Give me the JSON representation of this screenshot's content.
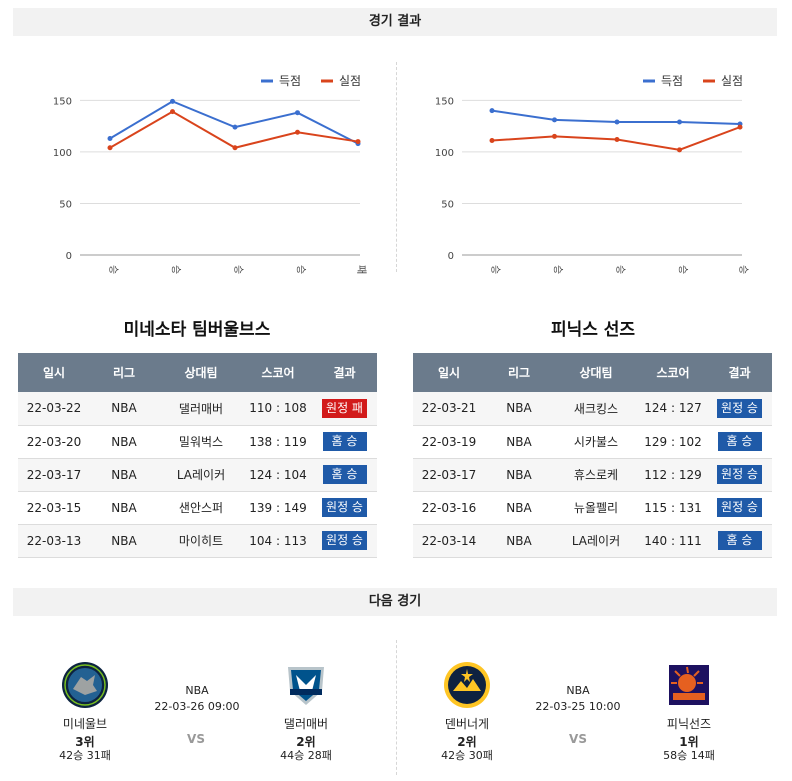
{
  "headers": {
    "results": "경기 결과",
    "next": "다음 경기"
  },
  "colors": {
    "scored": "#3b6fcf",
    "allowed": "#d9441c",
    "win_badge": "#1f5aa8",
    "loss_badge": "#d21a1a",
    "table_header": "#6b7b8c"
  },
  "chart_data": [
    {
      "type": "line",
      "legend": [
        "득점",
        "실점"
      ],
      "legend_position": "top-right",
      "categories": [
        "승",
        "승",
        "승",
        "승",
        "패"
      ],
      "series": [
        {
          "name": "득점",
          "values": [
            113,
            149,
            124,
            138,
            108
          ]
        },
        {
          "name": "실점",
          "values": [
            104,
            139,
            104,
            119,
            110
          ]
        }
      ],
      "yticks": [
        0,
        50,
        100,
        150
      ],
      "ylim": [
        0,
        160
      ],
      "grid": true
    },
    {
      "type": "line",
      "legend": [
        "득점",
        "실점"
      ],
      "legend_position": "top-right",
      "categories": [
        "승",
        "승",
        "승",
        "승",
        "승"
      ],
      "series": [
        {
          "name": "득점",
          "values": [
            140,
            131,
            129,
            129,
            127
          ]
        },
        {
          "name": "실점",
          "values": [
            111,
            115,
            112,
            102,
            124
          ]
        }
      ],
      "yticks": [
        0,
        50,
        100,
        150
      ],
      "ylim": [
        0,
        160
      ],
      "grid": true
    }
  ],
  "teams": [
    {
      "name": "미네소타 팀버울브스",
      "columns": [
        "일시",
        "리그",
        "상대팀",
        "스코어",
        "결과"
      ],
      "rows": [
        {
          "date": "22-03-22",
          "league": "NBA",
          "opponent": "댈러매버",
          "score": "110 : 108",
          "result": "원정 패",
          "win": false
        },
        {
          "date": "22-03-20",
          "league": "NBA",
          "opponent": "밀워벅스",
          "score": "138 : 119",
          "result": "홈 승",
          "win": true
        },
        {
          "date": "22-03-17",
          "league": "NBA",
          "opponent": "LA레이커",
          "score": "124 : 104",
          "result": "홈 승",
          "win": true
        },
        {
          "date": "22-03-15",
          "league": "NBA",
          "opponent": "샌안스퍼",
          "score": "139 : 149",
          "result": "원정 승",
          "win": true
        },
        {
          "date": "22-03-13",
          "league": "NBA",
          "opponent": "마이히트",
          "score": "104 : 113",
          "result": "원정 승",
          "win": true
        }
      ]
    },
    {
      "name": "피닉스 선즈",
      "columns": [
        "일시",
        "리그",
        "상대팀",
        "스코어",
        "결과"
      ],
      "rows": [
        {
          "date": "22-03-21",
          "league": "NBA",
          "opponent": "새크킹스",
          "score": "124 : 127",
          "result": "원정 승",
          "win": true
        },
        {
          "date": "22-03-19",
          "league": "NBA",
          "opponent": "시카불스",
          "score": "129 : 102",
          "result": "홈 승",
          "win": true
        },
        {
          "date": "22-03-17",
          "league": "NBA",
          "opponent": "휴스로케",
          "score": "112 : 129",
          "result": "원정 승",
          "win": true
        },
        {
          "date": "22-03-16",
          "league": "NBA",
          "opponent": "뉴올펠리",
          "score": "115 : 131",
          "result": "원정 승",
          "win": true
        },
        {
          "date": "22-03-14",
          "league": "NBA",
          "opponent": "LA레이커",
          "score": "140 : 111",
          "result": "홈 승",
          "win": true
        }
      ]
    }
  ],
  "next_games": [
    {
      "league": "NBA",
      "datetime": "22-03-26 09:00",
      "vs": "VS",
      "home": {
        "name": "미네울브",
        "rank": "3위",
        "record": "42승 31패",
        "logo": "timberwolves-logo"
      },
      "away": {
        "name": "댈러매버",
        "rank": "2위",
        "record": "44승 28패",
        "logo": "mavericks-logo"
      }
    },
    {
      "league": "NBA",
      "datetime": "22-03-25 10:00",
      "vs": "VS",
      "home": {
        "name": "덴버너게",
        "rank": "2위",
        "record": "42승 30패",
        "logo": "nuggets-logo"
      },
      "away": {
        "name": "피닉선즈",
        "rank": "1위",
        "record": "58승 14패",
        "logo": "suns-logo"
      }
    }
  ]
}
